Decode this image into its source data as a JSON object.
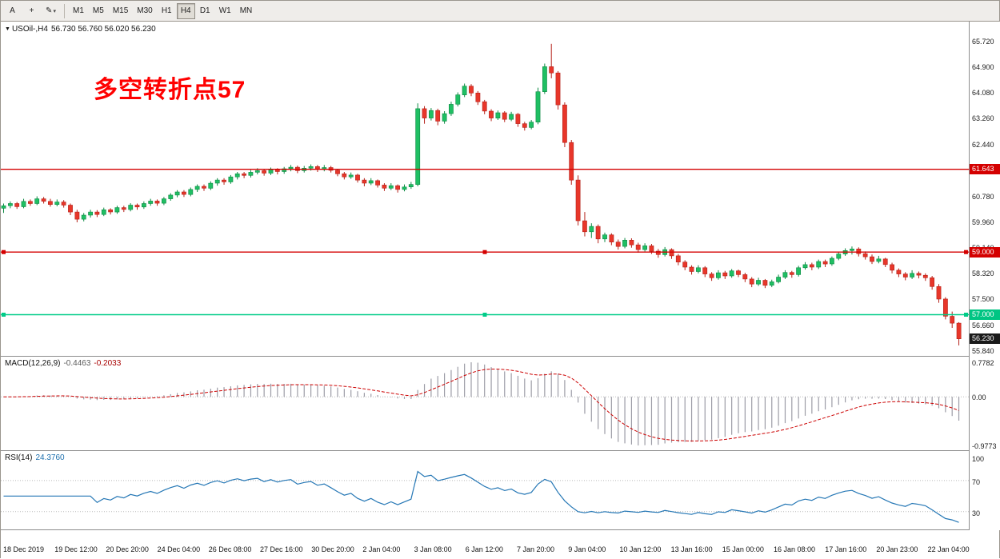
{
  "toolbar": {
    "cursor_label": "A",
    "crosshair_icon": "+",
    "draw_icon": "✎",
    "caret_icon": "▾",
    "timeframes": [
      "M1",
      "M5",
      "M15",
      "M30",
      "H1",
      "H4",
      "D1",
      "W1",
      "MN"
    ],
    "active_timeframe": "H4"
  },
  "chart": {
    "dropdown_icon": "▼",
    "symbol": "USOil-,H4",
    "ohlc": "56.730 56.760 56.020 56.230",
    "annotation": "多空转折点57",
    "annotation_color": "#ff0000",
    "hlines": [
      {
        "value": 61.643,
        "label": "61.643",
        "color": "#d40000",
        "tag_bg": "#d40000",
        "handles": false
      },
      {
        "value": 59.0,
        "label": "59.000",
        "color": "#d40000",
        "tag_bg": "#d40000",
        "handles": true
      },
      {
        "value": 57.0,
        "label": "57.000",
        "color": "#00cc88",
        "tag_bg": "#00c583",
        "handles": true
      }
    ],
    "current_price": {
      "value": 56.23,
      "label": "56.230",
      "tag_bg": "#1a1a1a"
    },
    "price_axis": [
      "65.720",
      "64.900",
      "64.080",
      "63.260",
      "62.440",
      "61.620",
      "60.780",
      "59.960",
      "59.140",
      "58.320",
      "57.500",
      "56.660",
      "55.840"
    ],
    "colors": {
      "up": "#1fbf63",
      "up_border": "#0e8a44",
      "down": "#e8362a",
      "down_border": "#b5221a"
    }
  },
  "macd": {
    "name": "MACD(12,26,9)",
    "value_main": "-0.4463",
    "value_signal": "-0.2033",
    "axis_max": "0.7782",
    "axis_zero": "0.00",
    "axis_min": "-0.9773"
  },
  "rsi": {
    "name": "RSI(14)",
    "value": "24.3760",
    "axis": [
      "100",
      "70",
      "30"
    ],
    "levels": [
      70,
      30
    ]
  },
  "time_axis": [
    "18 Dec 2019",
    "19 Dec 12:00",
    "20 Dec 20:00",
    "24 Dec 04:00",
    "26 Dec 08:00",
    "27 Dec 16:00",
    "30 Dec 20:00",
    "2 Jan 04:00",
    "3 Jan 08:00",
    "6 Jan 12:00",
    "7 Jan 20:00",
    "9 Jan 04:00",
    "10 Jan 12:00",
    "13 Jan 16:00",
    "15 Jan 00:00",
    "16 Jan 08:00",
    "17 Jan 16:00",
    "20 Jan 23:00",
    "22 Jan 04:00"
  ],
  "chart_data": {
    "type": "candlestick",
    "symbol": "USOil",
    "timeframe": "H4",
    "ohlc_current": {
      "open": 56.73,
      "high": 56.76,
      "low": 56.02,
      "close": 56.23
    },
    "price_range": [
      55.66,
      66.36
    ],
    "hline_levels": [
      61.643,
      59.0,
      57.0
    ],
    "candles": [
      [
        60.4,
        60.55,
        60.25,
        60.48
      ],
      [
        60.48,
        60.62,
        60.4,
        60.55
      ],
      [
        60.55,
        60.6,
        60.38,
        60.45
      ],
      [
        60.45,
        60.7,
        60.4,
        60.62
      ],
      [
        60.62,
        60.68,
        60.48,
        60.55
      ],
      [
        60.55,
        60.78,
        60.5,
        60.7
      ],
      [
        60.7,
        60.76,
        60.55,
        60.62
      ],
      [
        60.62,
        60.7,
        60.45,
        60.52
      ],
      [
        60.52,
        60.68,
        60.46,
        60.6
      ],
      [
        60.6,
        60.66,
        60.42,
        60.5
      ],
      [
        60.5,
        60.55,
        60.18,
        60.28
      ],
      [
        60.28,
        60.35,
        59.95,
        60.05
      ],
      [
        60.05,
        60.25,
        59.98,
        60.18
      ],
      [
        60.18,
        60.35,
        60.1,
        60.28
      ],
      [
        60.28,
        60.34,
        60.12,
        60.2
      ],
      [
        60.2,
        60.42,
        60.15,
        60.35
      ],
      [
        60.35,
        60.4,
        60.2,
        60.28
      ],
      [
        60.28,
        60.48,
        60.22,
        60.42
      ],
      [
        60.42,
        60.48,
        60.28,
        60.36
      ],
      [
        60.36,
        60.56,
        60.3,
        60.5
      ],
      [
        60.5,
        60.55,
        60.35,
        60.44
      ],
      [
        60.44,
        60.62,
        60.38,
        60.55
      ],
      [
        60.55,
        60.7,
        60.48,
        60.63
      ],
      [
        60.63,
        60.68,
        60.48,
        60.56
      ],
      [
        60.56,
        60.76,
        60.5,
        60.7
      ],
      [
        60.7,
        60.88,
        60.64,
        60.82
      ],
      [
        60.82,
        60.98,
        60.75,
        60.92
      ],
      [
        60.92,
        60.98,
        60.76,
        60.84
      ],
      [
        60.84,
        61.06,
        60.78,
        61.0
      ],
      [
        61.0,
        61.16,
        60.92,
        61.1
      ],
      [
        61.1,
        61.16,
        60.95,
        61.04
      ],
      [
        61.04,
        61.26,
        60.98,
        61.2
      ],
      [
        61.2,
        61.36,
        61.12,
        61.3
      ],
      [
        61.3,
        61.36,
        61.15,
        61.24
      ],
      [
        61.24,
        61.46,
        61.18,
        61.4
      ],
      [
        61.4,
        61.56,
        61.32,
        61.5
      ],
      [
        61.5,
        61.56,
        61.36,
        61.45
      ],
      [
        61.45,
        61.62,
        61.38,
        61.55
      ],
      [
        61.55,
        61.68,
        61.48,
        61.6
      ],
      [
        61.6,
        61.66,
        61.44,
        61.52
      ],
      [
        61.52,
        61.7,
        61.46,
        61.63
      ],
      [
        61.63,
        61.68,
        61.48,
        61.57
      ],
      [
        61.57,
        61.72,
        61.5,
        61.66
      ],
      [
        61.66,
        61.78,
        61.58,
        61.71
      ],
      [
        61.71,
        61.76,
        61.52,
        61.6
      ],
      [
        61.6,
        61.75,
        61.54,
        61.68
      ],
      [
        61.68,
        61.8,
        61.6,
        61.73
      ],
      [
        61.73,
        61.78,
        61.56,
        61.64
      ],
      [
        61.64,
        61.78,
        61.58,
        61.7
      ],
      [
        61.7,
        61.75,
        61.54,
        61.61
      ],
      [
        61.61,
        61.66,
        61.42,
        61.5
      ],
      [
        61.5,
        61.56,
        61.32,
        61.4
      ],
      [
        61.4,
        61.54,
        61.34,
        61.46
      ],
      [
        61.46,
        61.5,
        61.22,
        61.3
      ],
      [
        61.3,
        61.36,
        61.1,
        61.2
      ],
      [
        61.2,
        61.36,
        61.14,
        61.28
      ],
      [
        61.28,
        61.32,
        61.06,
        61.14
      ],
      [
        61.14,
        61.2,
        60.95,
        61.04
      ],
      [
        61.04,
        61.2,
        60.98,
        61.12
      ],
      [
        61.12,
        61.16,
        60.9,
        61.0
      ],
      [
        61.0,
        61.16,
        60.94,
        61.08
      ],
      [
        61.08,
        61.24,
        61.02,
        61.16
      ],
      [
        61.16,
        63.75,
        61.1,
        63.58
      ],
      [
        63.58,
        63.66,
        63.1,
        63.28
      ],
      [
        63.28,
        63.6,
        63.2,
        63.52
      ],
      [
        63.52,
        63.58,
        63.05,
        63.18
      ],
      [
        63.18,
        63.5,
        63.1,
        63.42
      ],
      [
        63.42,
        63.8,
        63.35,
        63.72
      ],
      [
        63.72,
        64.1,
        63.65,
        64.02
      ],
      [
        64.02,
        64.38,
        63.95,
        64.3
      ],
      [
        64.3,
        64.36,
        63.98,
        64.08
      ],
      [
        64.08,
        64.14,
        63.7,
        63.8
      ],
      [
        63.8,
        63.86,
        63.4,
        63.5
      ],
      [
        63.5,
        63.56,
        63.18,
        63.28
      ],
      [
        63.28,
        63.52,
        63.22,
        63.45
      ],
      [
        63.45,
        63.5,
        63.15,
        63.24
      ],
      [
        63.24,
        63.48,
        63.18,
        63.4
      ],
      [
        63.4,
        63.44,
        63.0,
        63.1
      ],
      [
        63.1,
        63.16,
        62.88,
        62.98
      ],
      [
        62.98,
        63.22,
        62.92,
        63.15
      ],
      [
        63.15,
        64.25,
        63.08,
        64.12
      ],
      [
        64.12,
        65.02,
        64.05,
        64.92
      ],
      [
        64.92,
        65.65,
        64.55,
        64.72
      ],
      [
        64.72,
        64.78,
        63.55,
        63.7
      ],
      [
        63.7,
        63.78,
        62.35,
        62.5
      ],
      [
        62.5,
        62.58,
        61.15,
        61.3
      ],
      [
        61.3,
        61.45,
        59.85,
        60.0
      ],
      [
        60.0,
        60.28,
        59.5,
        59.65
      ],
      [
        59.65,
        59.92,
        59.45,
        59.82
      ],
      [
        59.82,
        59.88,
        59.28,
        59.42
      ],
      [
        59.42,
        59.62,
        59.32,
        59.55
      ],
      [
        59.55,
        59.6,
        59.22,
        59.32
      ],
      [
        59.32,
        59.4,
        59.08,
        59.18
      ],
      [
        59.18,
        59.45,
        59.12,
        59.38
      ],
      [
        59.38,
        59.44,
        59.14,
        59.23
      ],
      [
        59.23,
        59.3,
        58.98,
        59.08
      ],
      [
        59.08,
        59.28,
        59.02,
        59.2
      ],
      [
        59.2,
        59.26,
        58.94,
        59.03
      ],
      [
        59.03,
        59.1,
        58.82,
        58.92
      ],
      [
        58.92,
        59.16,
        58.86,
        59.08
      ],
      [
        59.08,
        59.12,
        58.78,
        58.88
      ],
      [
        58.88,
        58.94,
        58.58,
        58.68
      ],
      [
        58.68,
        58.74,
        58.42,
        58.52
      ],
      [
        58.52,
        58.58,
        58.28,
        58.38
      ],
      [
        58.38,
        58.58,
        58.32,
        58.5
      ],
      [
        58.5,
        58.55,
        58.2,
        58.3
      ],
      [
        58.3,
        58.36,
        58.08,
        58.18
      ],
      [
        58.18,
        58.42,
        58.12,
        58.34
      ],
      [
        58.34,
        58.4,
        58.14,
        58.24
      ],
      [
        58.24,
        58.46,
        58.18,
        58.4
      ],
      [
        58.4,
        58.44,
        58.2,
        58.28
      ],
      [
        58.28,
        58.34,
        58.04,
        58.14
      ],
      [
        58.14,
        58.2,
        57.88,
        57.98
      ],
      [
        57.98,
        58.18,
        57.92,
        58.1
      ],
      [
        58.1,
        58.14,
        57.85,
        57.94
      ],
      [
        57.94,
        58.12,
        57.88,
        58.05
      ],
      [
        58.05,
        58.28,
        58.0,
        58.2
      ],
      [
        58.2,
        58.42,
        58.14,
        58.35
      ],
      [
        58.35,
        58.4,
        58.18,
        58.28
      ],
      [
        58.28,
        58.56,
        58.22,
        58.5
      ],
      [
        58.5,
        58.68,
        58.44,
        58.6
      ],
      [
        58.6,
        58.66,
        58.42,
        58.52
      ],
      [
        58.52,
        58.76,
        58.46,
        58.7
      ],
      [
        58.7,
        58.76,
        58.52,
        58.62
      ],
      [
        58.62,
        58.86,
        58.56,
        58.8
      ],
      [
        58.8,
        59.0,
        58.74,
        58.94
      ],
      [
        58.94,
        59.12,
        58.88,
        59.05
      ],
      [
        59.05,
        59.18,
        58.92,
        59.1
      ],
      [
        59.1,
        59.15,
        58.86,
        58.95
      ],
      [
        58.95,
        59.02,
        58.76,
        58.85
      ],
      [
        58.85,
        58.92,
        58.62,
        58.7
      ],
      [
        58.7,
        58.88,
        58.64,
        58.78
      ],
      [
        58.78,
        58.82,
        58.52,
        58.6
      ],
      [
        58.6,
        58.66,
        58.32,
        58.42
      ],
      [
        58.42,
        58.48,
        58.2,
        58.3
      ],
      [
        58.3,
        58.36,
        58.1,
        58.2
      ],
      [
        58.2,
        58.42,
        58.14,
        58.32
      ],
      [
        58.32,
        58.38,
        58.16,
        58.26
      ],
      [
        58.26,
        58.32,
        58.08,
        58.18
      ],
      [
        58.18,
        58.24,
        57.8,
        57.9
      ],
      [
        57.9,
        57.98,
        57.38,
        57.5
      ],
      [
        57.5,
        57.56,
        56.85,
        56.95
      ],
      [
        56.95,
        57.1,
        56.58,
        56.73
      ],
      [
        56.73,
        56.76,
        56.02,
        56.23
      ]
    ]
  }
}
